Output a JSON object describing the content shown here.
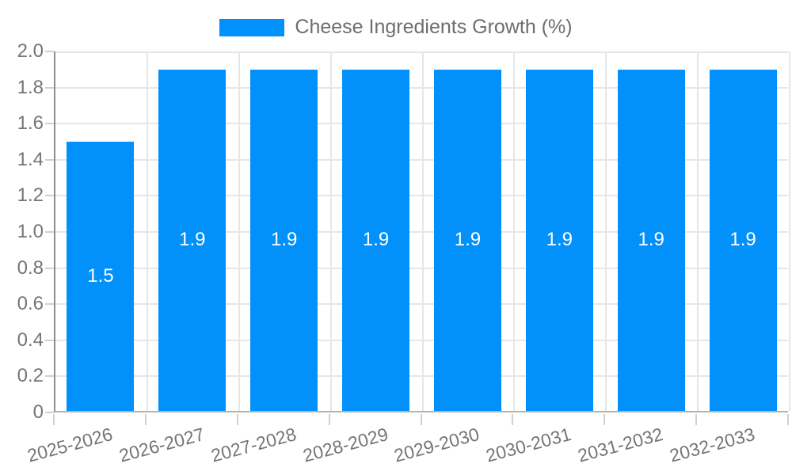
{
  "chart_data": {
    "type": "bar",
    "title": "",
    "legend_label": "Cheese Ingredients Growth (%)",
    "legend_position": "top",
    "categories": [
      "2025-2026",
      "2026-2027",
      "2027-2028",
      "2028-2029",
      "2029-2030",
      "2030-2031",
      "2031-2032",
      "2032-2033"
    ],
    "values": [
      1.5,
      1.9,
      1.9,
      1.9,
      1.9,
      1.9,
      1.9,
      1.9
    ],
    "value_labels": [
      "1.5",
      "1.9",
      "1.9",
      "1.9",
      "1.9",
      "1.9",
      "1.9",
      "1.9"
    ],
    "xlabel": "",
    "ylabel": "",
    "ylim": [
      0,
      2
    ],
    "yticks": [
      "0",
      "0.2",
      "0.4",
      "0.6",
      "0.8",
      "1.0",
      "1.2",
      "1.4",
      "1.6",
      "1.8",
      "2.0"
    ],
    "grid": true,
    "colors": {
      "bar": "#0290fb",
      "grid": "#e6e6e6",
      "tick": "#d0d0d0",
      "axis_text": "#757575",
      "legend_text": "#6e6e6e",
      "bar_label_text": "#ffffff",
      "y_axis_line": "#8e8e8e",
      "x_axis_line": "#b2b2b2",
      "background": "#ffffff"
    }
  }
}
